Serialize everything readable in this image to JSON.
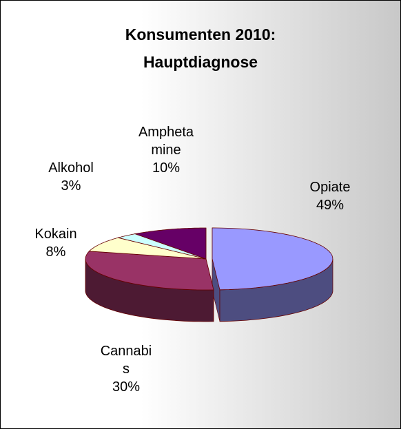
{
  "chart_data": {
    "type": "pie3d",
    "title": [
      "Konsumenten 2010:",
      "Hauptdiagnose"
    ],
    "categories": [
      "Opiate",
      "Cannabis",
      "Kokain",
      "Alkohol",
      "Amphetamine"
    ],
    "values": [
      49,
      30,
      8,
      3,
      10
    ],
    "value_labels": [
      "49%",
      "30%",
      "8%",
      "3%",
      "10%"
    ],
    "colors": [
      "#9999ff",
      "#993366",
      "#ffffcc",
      "#ccffff",
      "#660066"
    ],
    "exploded": [
      0
    ]
  }
}
